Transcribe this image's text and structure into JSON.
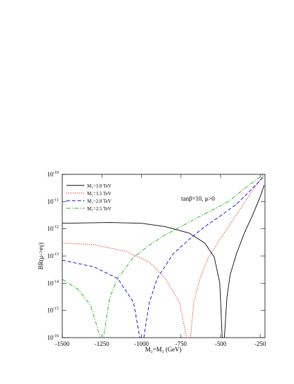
{
  "chart_data": {
    "type": "line",
    "xlabel": "M₂=M₃ (GeV)",
    "ylabel": "BR(μ->eγ)",
    "annotation": "tanβ=10, μ>0",
    "xlim": [
      -1500,
      -220
    ],
    "xticks": [
      -1500,
      -1250,
      -1000,
      -750,
      -500,
      -250
    ],
    "ylim": [
      1e-16,
      1e-10
    ],
    "log_y": true,
    "yticks": [
      {
        "value": 1e-16,
        "label": "10",
        "exponent": "-16"
      },
      {
        "value": 1e-15,
        "label": "10",
        "exponent": "-15"
      },
      {
        "value": 1e-14,
        "label": "10",
        "exponent": "-14"
      },
      {
        "value": 1e-13,
        "label": "10",
        "exponent": "-13"
      },
      {
        "value": 1e-12,
        "label": "10",
        "exponent": "-12"
      },
      {
        "value": 1e-11,
        "label": "10",
        "exponent": "-11"
      },
      {
        "value": 1e-10,
        "label": "10",
        "exponent": "-10"
      }
    ],
    "legend": "upper left",
    "series": [
      {
        "name": "M₁=1.0 TeV",
        "color": "#000000",
        "dash": "",
        "x": [
          -1500,
          -1200,
          -1000,
          -850,
          -700,
          -600,
          -540,
          -505,
          -490,
          -476,
          -460,
          -440,
          -400,
          -350,
          -300,
          -250,
          -225
        ],
        "values": [
          1.6e-12,
          1.7e-12,
          1.6e-12,
          1.2e-12,
          7e-13,
          3e-13,
          9e-14,
          1e-14,
          1e-16,
          1e-16,
          3e-15,
          2e-14,
          1.2e-13,
          7e-13,
          3e-12,
          1.5e-11,
          4e-11
        ]
      },
      {
        "name": "M₁=1.5 TeV",
        "color": "#e00000",
        "dash": "1.2 1.8",
        "x": [
          -1500,
          -1300,
          -1100,
          -950,
          -850,
          -760,
          -715,
          -690,
          -670,
          -630,
          -580,
          -520,
          -450,
          -380,
          -300,
          -230
        ],
        "values": [
          3e-13,
          2.6e-13,
          1.5e-13,
          6e-14,
          1.5e-14,
          2e-15,
          1e-16,
          1e-16,
          2e-15,
          1.5e-14,
          8e-14,
          3e-13,
          1.2e-12,
          5e-12,
          2.5e-11,
          9e-11
        ]
      },
      {
        "name": "M₁=2.0 TeV",
        "color": "#0000cc",
        "dash": "5 3",
        "x": [
          -1500,
          -1300,
          -1150,
          -1050,
          -1010,
          -985,
          -950,
          -900,
          -800,
          -700,
          -600,
          -500,
          -400,
          -300,
          -230
        ],
        "values": [
          7e-14,
          4e-14,
          1.5e-14,
          2e-15,
          1e-16,
          1e-16,
          2e-15,
          1.5e-14,
          1.2e-13,
          4e-13,
          1.2e-12,
          3e-12,
          8e-12,
          3e-11,
          8e-11
        ]
      },
      {
        "name": "M₁=2.5 TeV",
        "color": "#22aa22",
        "dash": "6 2 1.5 2",
        "x": [
          -1500,
          -1400,
          -1320,
          -1260,
          -1240,
          -1200,
          -1150,
          -1050,
          -950,
          -850,
          -750,
          -650,
          -550,
          -450,
          -350,
          -250,
          -225
        ],
        "values": [
          1.4e-14,
          6e-15,
          1.5e-15,
          1e-16,
          1e-16,
          3e-15,
          1.5e-14,
          9e-14,
          2.5e-13,
          6e-13,
          1.2e-12,
          2.5e-12,
          5e-12,
          1e-11,
          3e-11,
          8e-11,
          1e-10
        ]
      }
    ]
  }
}
